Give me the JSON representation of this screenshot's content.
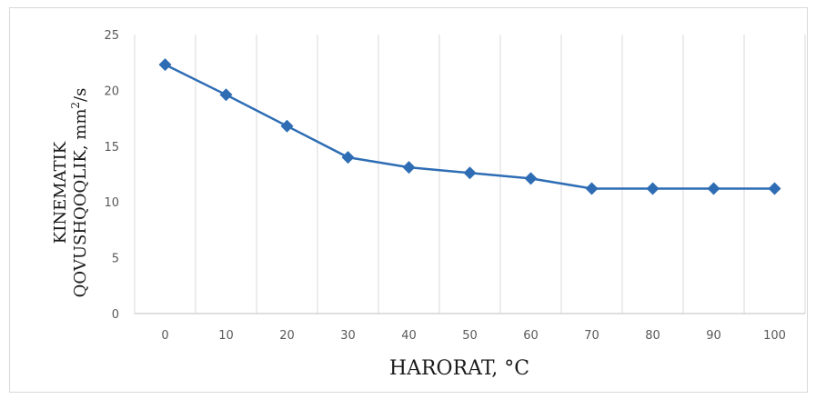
{
  "chart_data": {
    "type": "line",
    "x": [
      0,
      10,
      20,
      30,
      40,
      50,
      60,
      70,
      80,
      90,
      100
    ],
    "series": [
      {
        "values": [
          22.3,
          19.6,
          16.8,
          14.0,
          13.1,
          12.6,
          12.1,
          11.2,
          11.2,
          11.2,
          11.2
        ]
      }
    ],
    "xlabel": "HARORAT, °C",
    "ylabel_line1": "KINEMATIK",
    "ylabel_line2_prefix": "QOVUSHQOQLIK, mm",
    "ylabel_sup": "2",
    "ylabel_line2_suffix": "/s",
    "ylim": [
      0,
      25
    ],
    "yticks": [
      0,
      5,
      10,
      15,
      20,
      25
    ],
    "xticks": [
      "0",
      "10",
      "20",
      "30",
      "40",
      "50",
      "60",
      "70",
      "80",
      "90",
      "100"
    ],
    "grid": "vertical",
    "marker": "diamond",
    "colors": {
      "line": "#2e6db4",
      "grid": "#d9d9d9",
      "axis": "#bfbfbf"
    }
  }
}
